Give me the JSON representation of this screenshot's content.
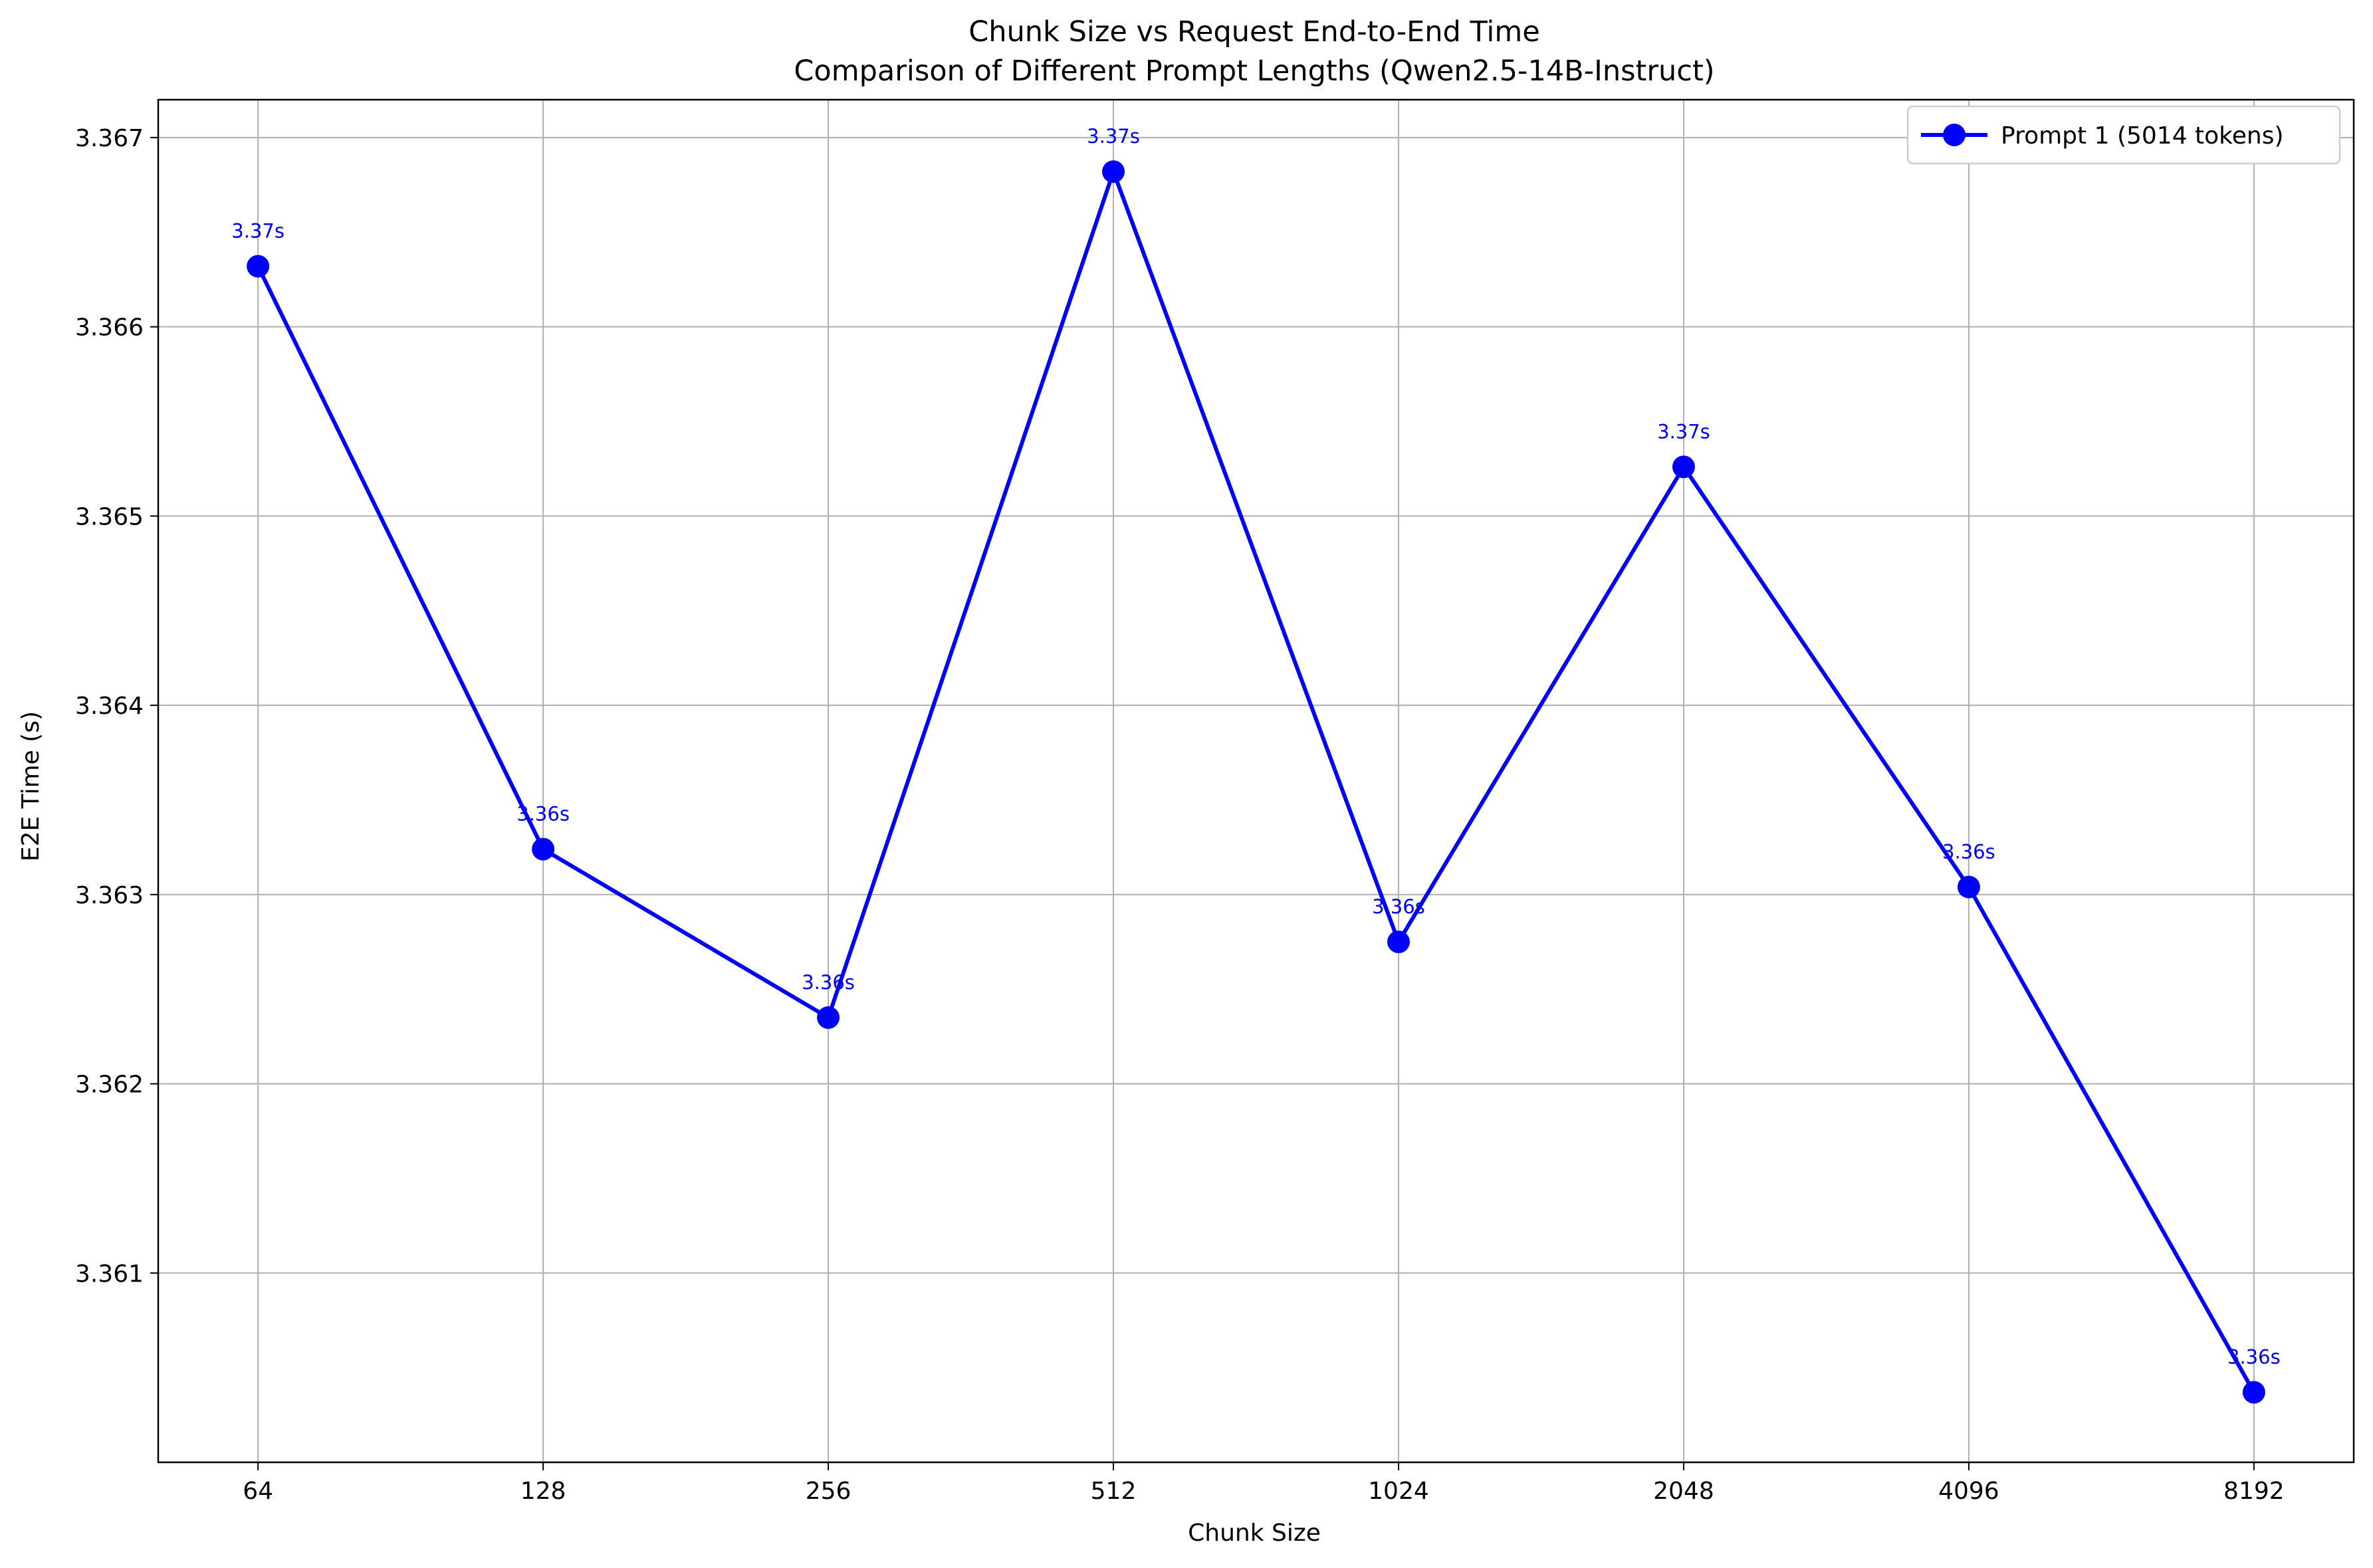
{
  "chart_data": {
    "type": "line",
    "title": "Chunk Size vs Request End-to-End Time",
    "subtitle": "Comparison of Different Prompt Lengths (Qwen2.5-14B-Instruct)",
    "xlabel": "Chunk Size",
    "ylabel": "E2E Time (s)",
    "categories": [
      "64",
      "128",
      "256",
      "512",
      "1024",
      "2048",
      "4096",
      "8192"
    ],
    "ylim": [
      3.36,
      3.3672
    ],
    "yticks": [
      "3.361",
      "3.362",
      "3.363",
      "3.364",
      "3.365",
      "3.366",
      "3.367"
    ],
    "grid": true,
    "legend_position": "top-right",
    "series": [
      {
        "name": "Prompt 1 (5014 tokens)",
        "color": "#0000ff",
        "marker": "circle",
        "values": [
          3.36632,
          3.36324,
          3.36235,
          3.36682,
          3.36275,
          3.36526,
          3.36304,
          3.36037
        ],
        "data_labels": [
          "3.37s",
          "3.36s",
          "3.36s",
          "3.37s",
          "3.36s",
          "3.37s",
          "3.36s",
          "3.36s"
        ]
      }
    ]
  }
}
